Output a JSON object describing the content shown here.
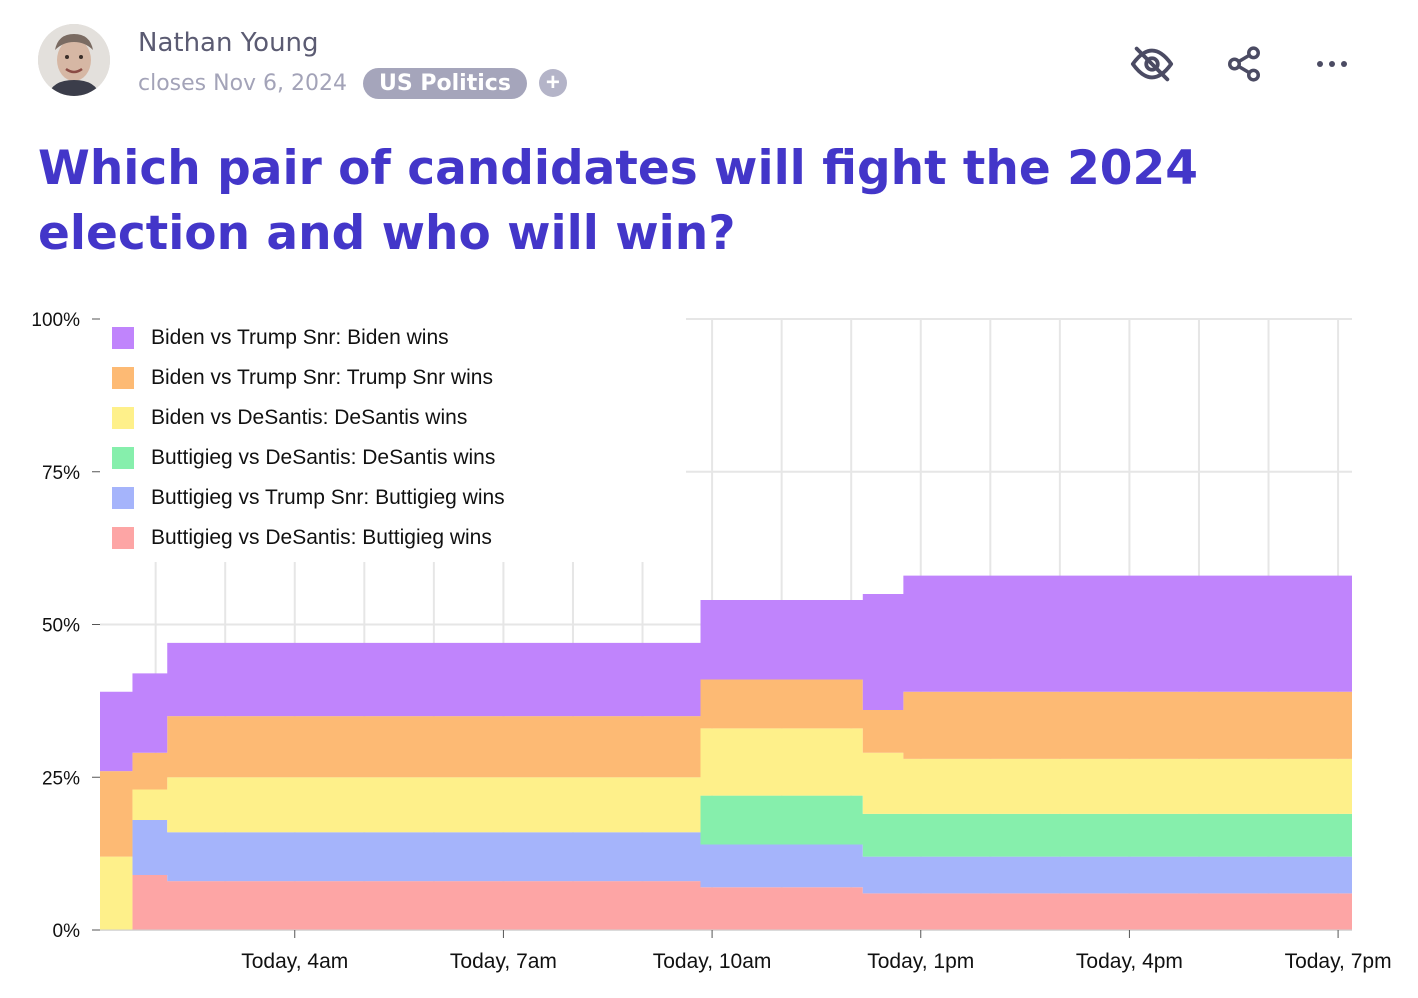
{
  "author": {
    "name": "Nathan Young"
  },
  "meta": {
    "closes": "closes Nov 6, 2024",
    "tag": "US Politics",
    "add_tag_icon": "plus-icon"
  },
  "actions": {
    "hide_icon": "eye-off-icon",
    "share_icon": "share-icon",
    "more_icon": "more-horizontal-icon"
  },
  "question": {
    "title": "Which pair of candidates will fight the 2024 election and who will win?"
  },
  "colors": {
    "title": "#4336c9",
    "muted": "#a3a3b8",
    "grid": "#e6e6e6"
  },
  "chart_data": {
    "type": "area",
    "stacked": true,
    "step": true,
    "y_unit": "%",
    "ylim": [
      0,
      100
    ],
    "yticks": [
      0,
      25,
      50,
      75,
      100
    ],
    "ytick_labels": [
      "0%",
      "25%",
      "50%",
      "75%",
      "100%"
    ],
    "xlim": [
      "01:12",
      "19:12"
    ],
    "xticks": [
      "04:00",
      "07:00",
      "10:00",
      "13:00",
      "16:00",
      "19:00"
    ],
    "xtick_labels": [
      "Today, 4am",
      "Today, 7am",
      "Today, 10am",
      "Today, 1pm",
      "Today, 4pm",
      "Today, 7pm"
    ],
    "x": [
      "01:12",
      "01:40",
      "02:10",
      "02:30",
      "09:50",
      "12:10",
      "12:45",
      "19:12"
    ],
    "legend_position": "top-left",
    "series": [
      {
        "name": "Buttigieg vs DeSantis: Buttigieg wins",
        "color": "#fda5a5",
        "values": [
          0,
          9,
          8,
          8,
          7,
          6,
          6,
          6
        ]
      },
      {
        "name": "Buttigieg vs Trump Snr: Buttigieg wins",
        "color": "#a5b4fb",
        "values": [
          0,
          9,
          8,
          8,
          7,
          6,
          6,
          6
        ]
      },
      {
        "name": "Buttigieg vs DeSantis: DeSantis wins",
        "color": "#86efac",
        "values": [
          0,
          0,
          0,
          0,
          8,
          7,
          7,
          7
        ]
      },
      {
        "name": "Biden vs DeSantis: DeSantis wins",
        "color": "#fef08a",
        "values": [
          12,
          5,
          9,
          9,
          11,
          10,
          9,
          9
        ]
      },
      {
        "name": "Biden vs Trump Snr: Trump Snr wins",
        "color": "#fdba74",
        "values": [
          14,
          6,
          10,
          10,
          8,
          7,
          11,
          11
        ]
      },
      {
        "name": "Biden vs Trump Snr: Biden wins",
        "color": "#c084fc",
        "values": [
          13,
          13,
          12,
          12,
          13,
          19,
          19,
          19
        ]
      }
    ],
    "legend_order": [
      "Biden vs Trump Snr: Biden wins",
      "Biden vs Trump Snr: Trump Snr wins",
      "Biden vs DeSantis: DeSantis wins",
      "Buttigieg vs DeSantis: DeSantis wins",
      "Buttigieg vs Trump Snr: Buttigieg wins",
      "Buttigieg vs DeSantis: Buttigieg wins"
    ]
  }
}
